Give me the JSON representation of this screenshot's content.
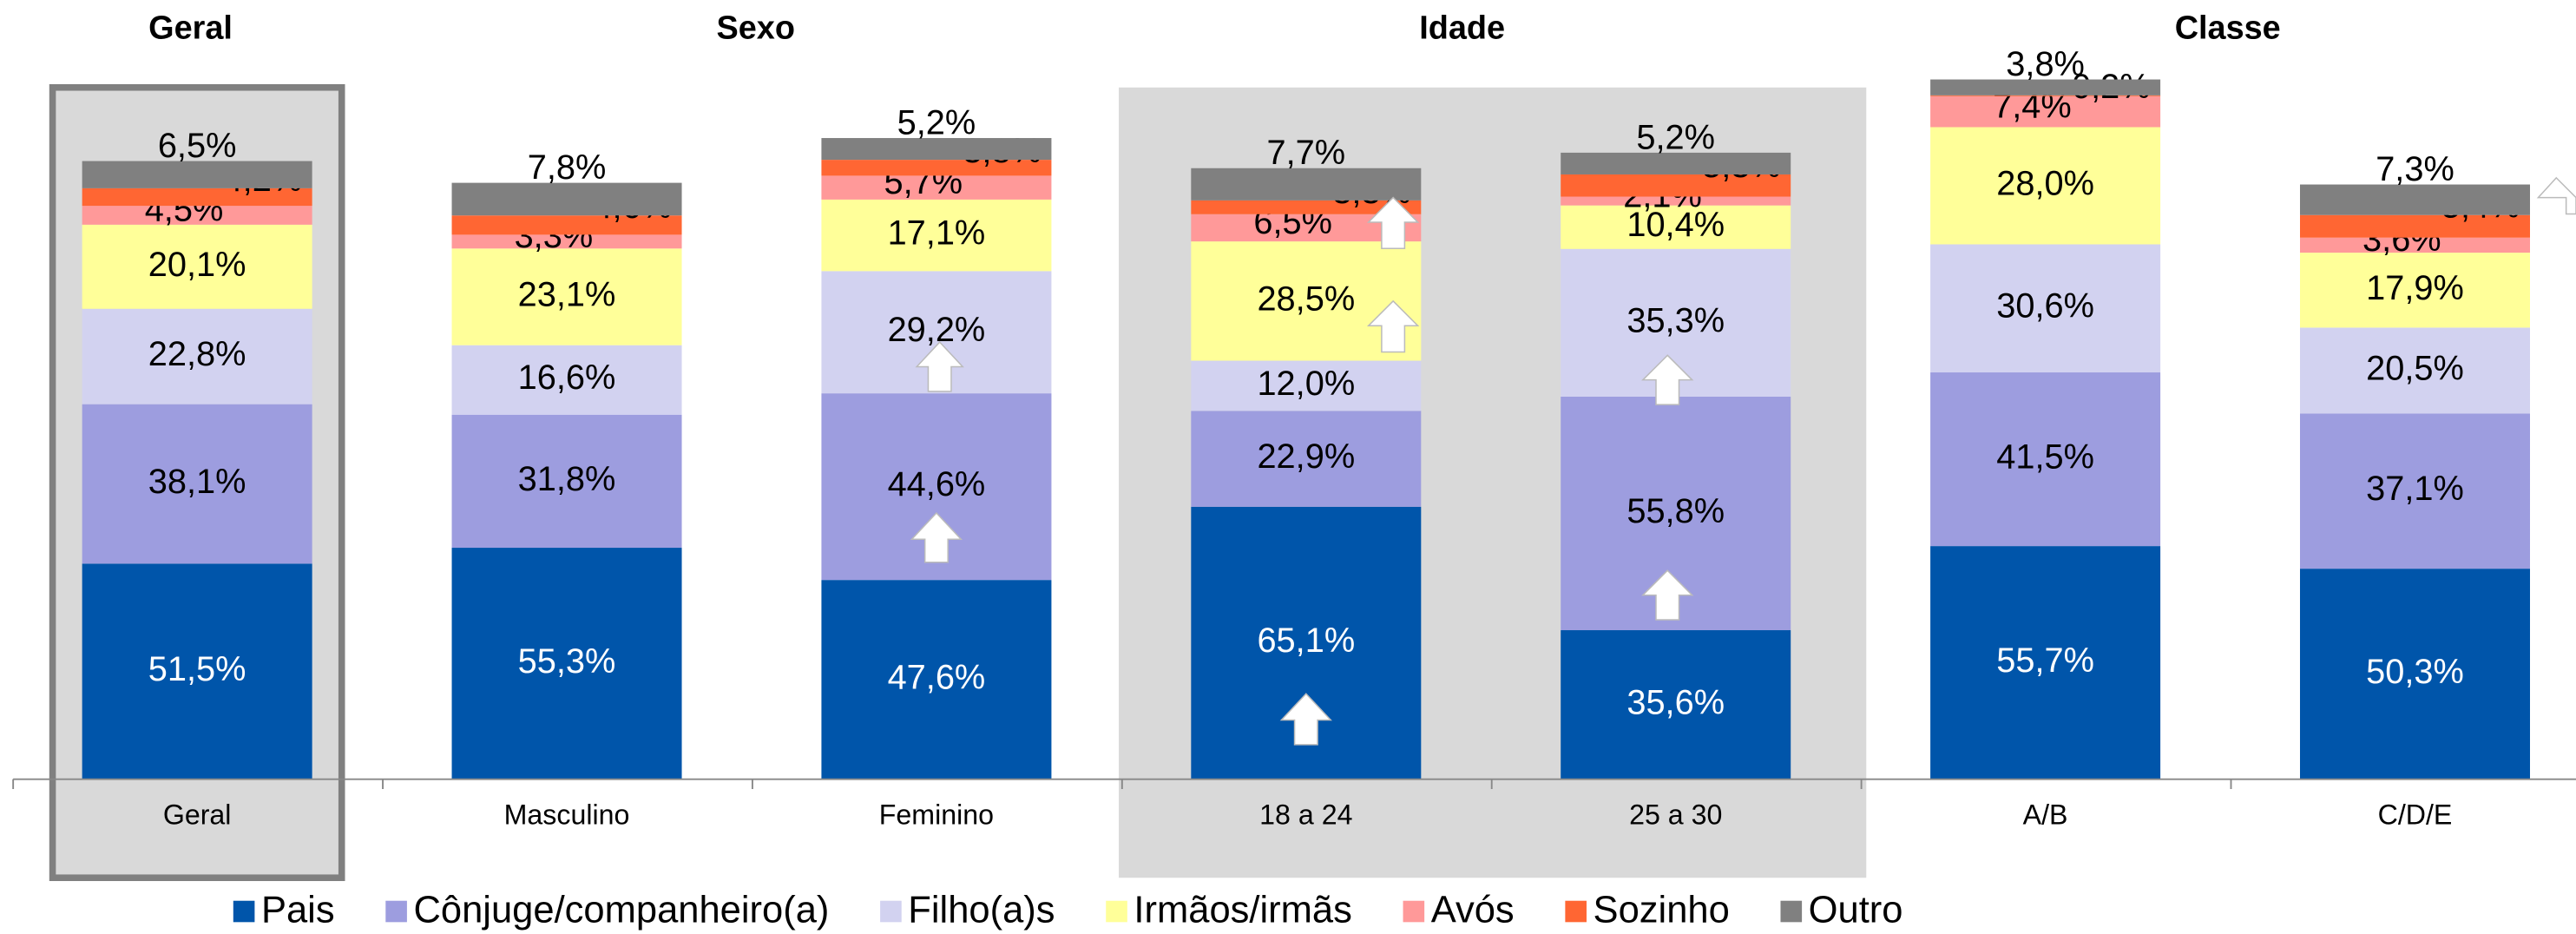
{
  "chart_data": {
    "type": "stacked_bar",
    "groups": [
      "Geral",
      "Sexo",
      "Idade",
      "Classe"
    ],
    "categories": [
      "Geral",
      "Masculino",
      "Feminino",
      "18 a 24",
      "25 a 30",
      "A/B",
      "C/D/E"
    ],
    "ylim": [
      0,
      170
    ],
    "legend": "bottom",
    "series": [
      {
        "name": "Pais",
        "color": "#0055aa",
        "values": [
          51.5,
          55.3,
          47.6,
          65.1,
          35.6,
          55.7,
          50.3
        ],
        "value_labels": [
          "51,5%",
          "55,3%",
          "47,6%",
          "65,1%",
          "35,6%",
          "55,7%",
          "50,3%"
        ]
      },
      {
        "name": "Cônjuge/companheiro(a)",
        "color": "#9d9ddf",
        "values": [
          38.1,
          31.8,
          44.6,
          22.9,
          55.8,
          41.5,
          37.1
        ],
        "value_labels": [
          "38,1%",
          "31,8%",
          "44,6%",
          "22,9%",
          "55,8%",
          "41,5%",
          "37,1%"
        ]
      },
      {
        "name": "Filho(a)s",
        "color": "#d2d2f0",
        "values": [
          22.8,
          16.6,
          29.2,
          12.0,
          35.3,
          30.6,
          20.5
        ],
        "value_labels": [
          "22,8%",
          "16,6%",
          "29,2%",
          "12,0%",
          "35,3%",
          "30,6%",
          "20,5%"
        ]
      },
      {
        "name": "Irmãos/irmãs",
        "color": "#ffff99",
        "values": [
          20.1,
          23.1,
          17.1,
          28.5,
          10.4,
          28.0,
          17.9
        ],
        "value_labels": [
          "20,1%",
          "23,1%",
          "17,1%",
          "28,5%",
          "10,4%",
          "28,0%",
          "17,9%"
        ]
      },
      {
        "name": "Avós",
        "color": "#ff9999",
        "values": [
          4.5,
          3.3,
          5.7,
          6.5,
          2.1,
          7.4,
          3.6
        ],
        "value_labels": [
          "4,5%",
          "3,3%",
          "5,7%",
          "6,5%",
          "2,1%",
          "7,4%",
          "3,6%"
        ]
      },
      {
        "name": "Sozinho",
        "color": "#ff6633",
        "values": [
          4.2,
          4.6,
          3.8,
          3.3,
          5.3,
          0.2,
          5.4
        ],
        "value_labels": [
          "4,2%",
          "4,6%",
          "3,8%",
          "3,3%",
          "5,3%",
          "0,2%",
          "5,4%"
        ]
      },
      {
        "name": "Outro",
        "color": "#808080",
        "values": [
          6.5,
          7.8,
          5.2,
          7.7,
          5.2,
          3.8,
          7.3
        ],
        "value_labels": [
          "6,5%",
          "7,8%",
          "5,2%",
          "7,7%",
          "5,2%",
          "3,8%",
          "7,3%"
        ]
      }
    ]
  }
}
